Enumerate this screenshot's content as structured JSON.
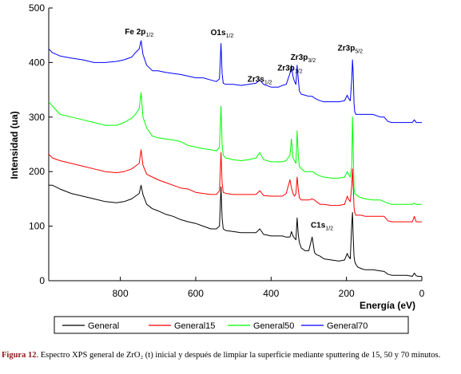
{
  "chart_data": {
    "type": "line",
    "xlabel": "Energía (eV)",
    "ylabel": "Intensidad (ua)",
    "xlim": [
      990,
      0
    ],
    "ylim": [
      0,
      500
    ],
    "x_reversed": true,
    "xticks": [
      800,
      600,
      400,
      200,
      0
    ],
    "yticks": [
      0,
      100,
      200,
      300,
      400,
      500
    ],
    "x_tick_labels": [
      "800",
      "600",
      "400",
      "200",
      "0"
    ],
    "y_tick_labels": [
      "0",
      "100",
      "200",
      "300",
      "400",
      "500"
    ],
    "legend": {
      "position": "bottom",
      "entries": [
        "General",
        "General15",
        "General50",
        "General70"
      ]
    },
    "series": [
      {
        "name": "General",
        "color": "#000000",
        "x": [
          990,
          980,
          960,
          930,
          900,
          870,
          840,
          810,
          790,
          770,
          760,
          750,
          745,
          740,
          730,
          715,
          700,
          680,
          660,
          640,
          620,
          600,
          580,
          560,
          545,
          537,
          533,
          530,
          527,
          520,
          500,
          480,
          460,
          440,
          430,
          420,
          400,
          380,
          370,
          360,
          350,
          346,
          342,
          338,
          334,
          331,
          328,
          325,
          320,
          310,
          300,
          291,
          285,
          280,
          270,
          260,
          240,
          220,
          205,
          198,
          195,
          190,
          186,
          184,
          182,
          180,
          178,
          175,
          170,
          160,
          150,
          130,
          110,
          100,
          90,
          80,
          60,
          40,
          25,
          20,
          15,
          10,
          0
        ],
        "y": [
          175,
          175,
          168,
          160,
          155,
          150,
          145,
          143,
          145,
          150,
          155,
          160,
          175,
          158,
          140,
          132,
          128,
          122,
          118,
          112,
          108,
          105,
          100,
          95,
          95,
          100,
          172,
          115,
          95,
          92,
          90,
          88,
          88,
          88,
          95,
          85,
          82,
          82,
          82,
          80,
          80,
          90,
          82,
          78,
          75,
          115,
          85,
          70,
          60,
          55,
          55,
          80,
          52,
          48,
          45,
          40,
          38,
          36,
          38,
          50,
          45,
          40,
          105,
          125,
          80,
          45,
          35,
          30,
          25,
          22,
          20,
          20,
          18,
          17,
          12,
          10,
          10,
          10,
          8,
          14,
          9,
          8,
          8
        ]
      },
      {
        "name": "General15",
        "color": "#ff0000",
        "x": [
          990,
          980,
          960,
          930,
          900,
          870,
          840,
          810,
          790,
          770,
          760,
          750,
          745,
          740,
          730,
          715,
          700,
          680,
          660,
          640,
          620,
          600,
          580,
          560,
          545,
          537,
          533,
          530,
          527,
          520,
          500,
          480,
          460,
          440,
          430,
          420,
          400,
          380,
          370,
          360,
          350,
          346,
          342,
          338,
          334,
          331,
          328,
          325,
          320,
          310,
          300,
          291,
          285,
          280,
          270,
          260,
          240,
          220,
          205,
          198,
          195,
          190,
          186,
          184,
          182,
          180,
          178,
          175,
          170,
          160,
          150,
          130,
          110,
          100,
          90,
          80,
          60,
          40,
          25,
          20,
          15,
          10,
          0
        ],
        "y": [
          232,
          225,
          220,
          215,
          210,
          205,
          200,
          198,
          200,
          205,
          210,
          215,
          240,
          212,
          195,
          190,
          185,
          180,
          175,
          170,
          168,
          162,
          160,
          158,
          158,
          165,
          235,
          180,
          162,
          160,
          158,
          158,
          158,
          158,
          165,
          156,
          155,
          155,
          155,
          160,
          185,
          170,
          160,
          155,
          160,
          190,
          168,
          152,
          148,
          148,
          148,
          150,
          148,
          145,
          140,
          140,
          138,
          138,
          140,
          155,
          150,
          145,
          175,
          205,
          175,
          135,
          125,
          120,
          120,
          120,
          118,
          118,
          118,
          118,
          110,
          108,
          108,
          108,
          108,
          118,
          108,
          108,
          108
        ]
      },
      {
        "name": "General50",
        "color": "#00ff00",
        "x": [
          990,
          980,
          960,
          930,
          900,
          870,
          840,
          810,
          790,
          770,
          760,
          750,
          745,
          740,
          730,
          715,
          700,
          680,
          660,
          640,
          620,
          600,
          580,
          560,
          545,
          537,
          533,
          530,
          527,
          520,
          500,
          480,
          460,
          440,
          430,
          420,
          400,
          380,
          370,
          360,
          350,
          346,
          342,
          338,
          334,
          331,
          328,
          325,
          320,
          310,
          300,
          291,
          285,
          280,
          270,
          260,
          240,
          220,
          205,
          198,
          195,
          190,
          186,
          184,
          182,
          180,
          178,
          175,
          170,
          160,
          150,
          130,
          110,
          100,
          90,
          80,
          60,
          40,
          25,
          20,
          15,
          10,
          0
        ],
        "y": [
          328,
          320,
          305,
          300,
          295,
          290,
          285,
          285,
          290,
          298,
          305,
          315,
          345,
          300,
          280,
          265,
          262,
          260,
          258,
          255,
          248,
          245,
          242,
          240,
          238,
          245,
          320,
          250,
          230,
          225,
          222,
          220,
          222,
          225,
          235,
          222,
          218,
          218,
          218,
          220,
          230,
          260,
          225,
          220,
          215,
          275,
          230,
          210,
          205,
          200,
          200,
          200,
          198,
          195,
          192,
          190,
          188,
          188,
          190,
          200,
          195,
          190,
          210,
          300,
          240,
          170,
          160,
          158,
          155,
          152,
          150,
          148,
          148,
          145,
          142,
          140,
          140,
          140,
          140,
          142,
          140,
          140,
          140
        ]
      },
      {
        "name": "General70",
        "color": "#0000ff",
        "x": [
          990,
          980,
          960,
          930,
          900,
          870,
          840,
          810,
          790,
          770,
          760,
          750,
          745,
          740,
          730,
          715,
          700,
          680,
          660,
          640,
          620,
          600,
          580,
          560,
          545,
          537,
          533,
          530,
          527,
          520,
          500,
          480,
          460,
          440,
          430,
          420,
          400,
          380,
          370,
          360,
          350,
          346,
          342,
          338,
          334,
          331,
          328,
          325,
          320,
          310,
          300,
          291,
          285,
          280,
          270,
          260,
          240,
          220,
          205,
          198,
          195,
          190,
          186,
          184,
          182,
          180,
          178,
          175,
          170,
          160,
          150,
          130,
          110,
          100,
          90,
          80,
          60,
          40,
          25,
          20,
          15,
          10,
          0
        ],
        "y": [
          425,
          418,
          412,
          408,
          405,
          400,
          400,
          402,
          405,
          410,
          418,
          425,
          440,
          415,
          395,
          385,
          385,
          382,
          380,
          378,
          375,
          372,
          372,
          368,
          365,
          370,
          435,
          380,
          362,
          360,
          360,
          358,
          360,
          362,
          368,
          360,
          355,
          355,
          358,
          360,
          380,
          395,
          375,
          365,
          360,
          395,
          370,
          348,
          342,
          340,
          338,
          338,
          335,
          333,
          330,
          328,
          328,
          328,
          330,
          340,
          335,
          330,
          370,
          405,
          380,
          325,
          310,
          305,
          305,
          305,
          305,
          305,
          300,
          300,
          292,
          290,
          290,
          290,
          290,
          295,
          290,
          290,
          290
        ]
      }
    ],
    "annotations": [
      {
        "text": "Fe 2p",
        "sub": "1/2",
        "x": 750,
        "y": 452
      },
      {
        "text": "O1s",
        "sub": "1/2",
        "x": 530,
        "y": 450
      },
      {
        "text": "Zr3s",
        "sub": "1/2",
        "x": 430,
        "y": 365
      },
      {
        "text": "Zr3p",
        "sub": "1/2",
        "x": 350,
        "y": 385
      },
      {
        "text": "Zr3p",
        "sub": "3/2",
        "x": 315,
        "y": 405
      },
      {
        "text": "Zr3p",
        "sub": "5/2",
        "x": 190,
        "y": 422
      },
      {
        "text": "C1s",
        "sub": "1/2",
        "x": 265,
        "y": 97
      }
    ]
  },
  "caption": {
    "figure_label": "Figura 12",
    "text": ". Espectro XPS  general de ZrO₂ (t)  inicial y después de limpiar la superficie mediante sputtering de 15, 50 y 70 minutos."
  }
}
